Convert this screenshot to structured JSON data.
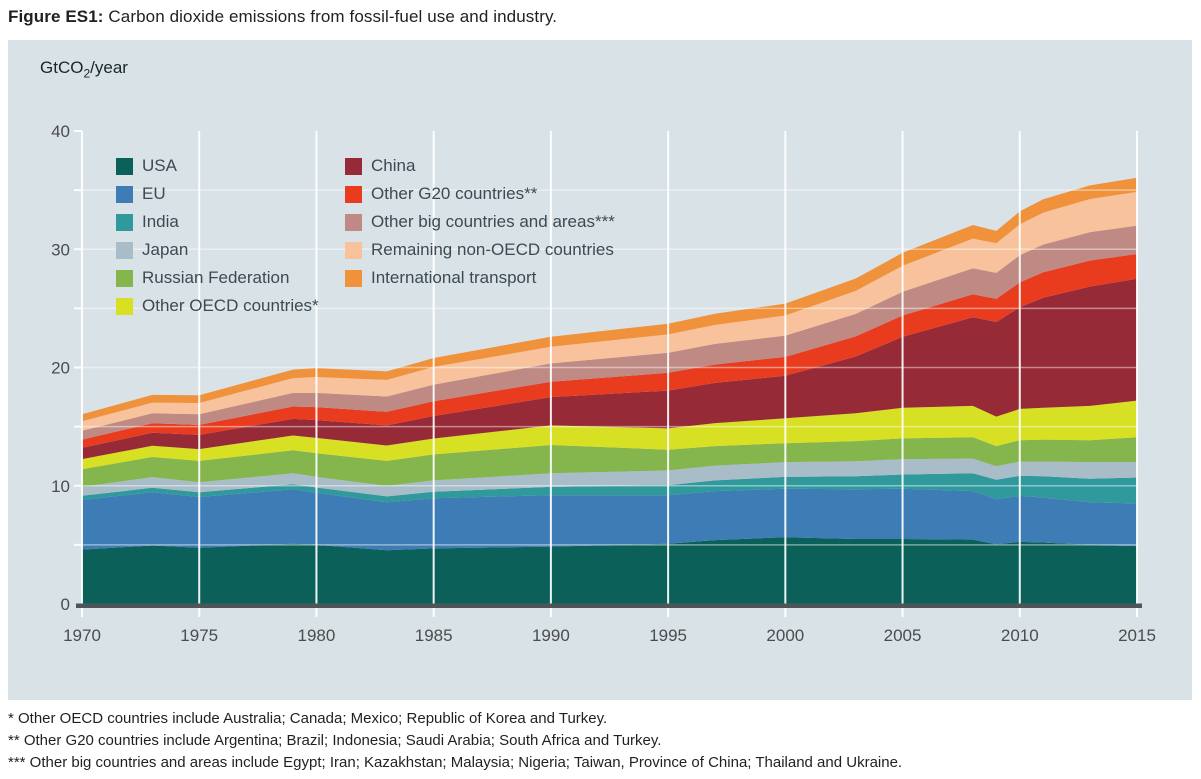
{
  "figure": {
    "label": "Figure ES1:",
    "caption": " Carbon dioxide emissions from fossil-fuel use and industry."
  },
  "unit_label": {
    "pre": "GtCO",
    "sub": "2",
    "post": "/year"
  },
  "footnotes": [
    "* Other OECD countries include Australia; Canada; Mexico; Republic of Korea and Turkey.",
    "** Other G20 countries include Argentina; Brazil; Indonesia; Saudi Arabia; South Africa and Turkey.",
    "*** Other big countries and areas include Egypt; Iran; Kazakhstan; Malaysia; Nigeria; Taiwan, Province of China; Thailand and Ukraine."
  ],
  "colors": {
    "panel_bg": "#d9e3e7",
    "baseline_bar": "#4d555a",
    "grid": "#ffffff",
    "tick_label": "#4c4c4c",
    "legend_text": "#3d4a53"
  },
  "chart_data": {
    "type": "area",
    "stacked": true,
    "title": "Carbon dioxide emissions from fossil-fuel use and industry",
    "xlabel": "",
    "ylabel": "GtCO2/year",
    "xlim": [
      1970,
      2015
    ],
    "ylim": [
      0,
      40
    ],
    "x_ticks": [
      1970,
      1975,
      1980,
      1985,
      1990,
      1995,
      2000,
      2005,
      2010,
      2015
    ],
    "y_ticks": [
      0,
      10,
      20,
      30,
      40
    ],
    "y_minor_grid": [
      5,
      10,
      15,
      20,
      25,
      30,
      35
    ],
    "grid": "white vertical lines at 5-year ticks, faint white horizontal lines every 5 GtCO2",
    "legend_position": "two columns, top-left inside plot",
    "x": [
      1970,
      1973,
      1975,
      1979,
      1980,
      1983,
      1985,
      1990,
      1995,
      1997,
      2000,
      2003,
      2005,
      2008,
      2009,
      2010,
      2011,
      2013,
      2015
    ],
    "series": [
      {
        "name": "USA",
        "color": "#0b615a",
        "values": [
          4.6,
          4.95,
          4.75,
          5.1,
          5.0,
          4.55,
          4.7,
          4.85,
          5.1,
          5.4,
          5.65,
          5.5,
          5.5,
          5.45,
          5.05,
          5.25,
          5.2,
          5.0,
          4.9
        ]
      },
      {
        "name": "EU",
        "color": "#3e7cb5",
        "values": [
          4.2,
          4.5,
          4.3,
          4.6,
          4.4,
          4.05,
          4.25,
          4.35,
          4.1,
          4.15,
          4.1,
          4.2,
          4.25,
          4.1,
          3.8,
          3.9,
          3.8,
          3.6,
          3.6
        ]
      },
      {
        "name": "India",
        "color": "#2f999c",
        "values": [
          0.35,
          0.38,
          0.4,
          0.43,
          0.45,
          0.5,
          0.55,
          0.7,
          0.85,
          0.9,
          1.0,
          1.1,
          1.2,
          1.5,
          1.65,
          1.7,
          1.8,
          2.0,
          2.2
        ]
      },
      {
        "name": "Japan",
        "color": "#a9bdc8",
        "values": [
          0.75,
          0.9,
          0.85,
          0.92,
          0.9,
          0.9,
          0.95,
          1.15,
          1.25,
          1.25,
          1.25,
          1.28,
          1.3,
          1.25,
          1.15,
          1.2,
          1.25,
          1.4,
          1.3
        ]
      },
      {
        "name": "Russian Federation",
        "color": "#85b54d",
        "values": [
          1.5,
          1.7,
          1.8,
          1.95,
          2.0,
          2.1,
          2.2,
          2.4,
          1.75,
          1.65,
          1.6,
          1.7,
          1.75,
          1.8,
          1.7,
          1.8,
          1.85,
          1.85,
          2.1
        ]
      },
      {
        "name": "Other OECD countries*",
        "color": "#d7e022",
        "values": [
          0.85,
          0.95,
          1.0,
          1.25,
          1.3,
          1.3,
          1.35,
          1.65,
          1.8,
          1.95,
          2.1,
          2.35,
          2.6,
          2.65,
          2.5,
          2.65,
          2.7,
          2.9,
          3.1
        ]
      },
      {
        "name": "China",
        "color": "#962a37",
        "values": [
          0.95,
          1.1,
          1.2,
          1.4,
          1.5,
          1.7,
          1.9,
          2.4,
          3.2,
          3.4,
          3.6,
          4.8,
          6.0,
          7.5,
          8.0,
          8.6,
          9.3,
          10.1,
          10.3
        ]
      },
      {
        "name": "Other G20 countries**",
        "color": "#e93c1f",
        "values": [
          0.7,
          0.8,
          0.85,
          1.05,
          1.1,
          1.15,
          1.25,
          1.3,
          1.5,
          1.55,
          1.6,
          1.7,
          1.8,
          1.95,
          1.95,
          2.1,
          2.15,
          2.2,
          2.1
        ]
      },
      {
        "name": "Other big countries and areas***",
        "color": "#c08a84",
        "values": [
          0.75,
          0.85,
          0.9,
          1.15,
          1.2,
          1.3,
          1.4,
          1.55,
          1.7,
          1.75,
          1.8,
          1.9,
          2.0,
          2.2,
          2.2,
          2.3,
          2.35,
          2.4,
          2.4
        ]
      },
      {
        "name": "Remaining non-OECD countries",
        "color": "#f8c39c",
        "values": [
          0.8,
          0.9,
          0.95,
          1.25,
          1.35,
          1.4,
          1.5,
          1.4,
          1.55,
          1.6,
          1.7,
          1.95,
          2.2,
          2.5,
          2.5,
          2.6,
          2.7,
          2.8,
          2.85
        ]
      },
      {
        "name": "International transport",
        "color": "#f0913b",
        "values": [
          0.6,
          0.65,
          0.65,
          0.72,
          0.75,
          0.72,
          0.75,
          0.85,
          0.9,
          0.95,
          1.0,
          1.05,
          1.1,
          1.15,
          1.05,
          1.1,
          1.12,
          1.15,
          1.2
        ]
      }
    ]
  }
}
